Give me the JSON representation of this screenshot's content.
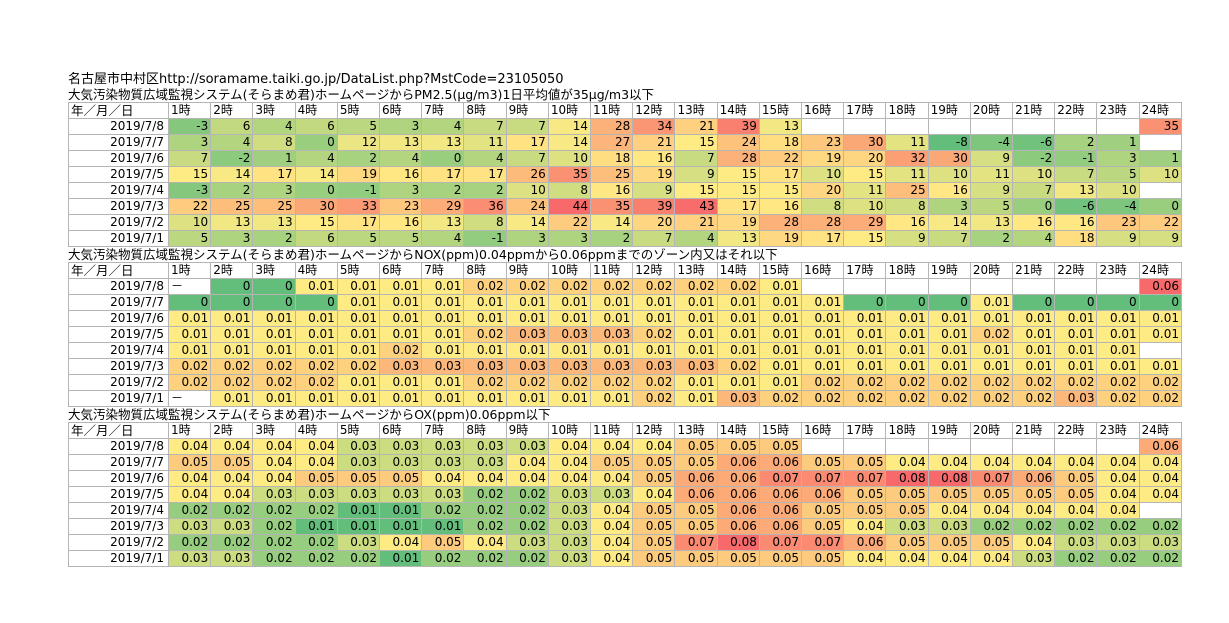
{
  "url_line": "名古屋市中村区http://soramame.taiki.go.jp/DataList.php?MstCode=23105050",
  "colors": {
    "green": "#63be7b",
    "yellow": "#ffeb84",
    "red": "#f8696b"
  },
  "sections": [
    {
      "title": "大気汚染物質広域監視システム(そらまめ君)ホームページからPM2.5(μg/m3)1日平均値が35μg/m3以下",
      "header_first": "年／月／日",
      "hours": [
        "1時",
        "2時",
        "3時",
        "4時",
        "5時",
        "6時",
        "7時",
        "8時",
        "9時",
        "10時",
        "11時",
        "12時",
        "13時",
        "14時",
        "15時",
        "16時",
        "17時",
        "18時",
        "19時",
        "20時",
        "21時",
        "22時",
        "23時",
        "24時"
      ],
      "scale": {
        "min": -8,
        "mid": 15,
        "max": 44,
        "decimals": 0
      },
      "rows": [
        {
          "date": "2019/7/8",
          "values": [
            -3,
            6,
            4,
            6,
            5,
            3,
            4,
            7,
            7,
            14,
            28,
            34,
            21,
            39,
            13,
            null,
            null,
            null,
            null,
            null,
            null,
            null,
            null,
            35
          ]
        },
        {
          "date": "2019/7/7",
          "values": [
            3,
            4,
            8,
            0,
            12,
            13,
            13,
            11,
            17,
            14,
            27,
            21,
            15,
            24,
            18,
            23,
            30,
            11,
            -8,
            -4,
            -6,
            2,
            1,
            null
          ]
        },
        {
          "date": "2019/7/6",
          "values": [
            7,
            -2,
            1,
            4,
            2,
            4,
            0,
            4,
            7,
            10,
            18,
            16,
            7,
            28,
            22,
            19,
            20,
            32,
            30,
            9,
            -2,
            -1,
            3,
            1
          ]
        },
        {
          "date": "2019/7/5",
          "values": [
            15,
            14,
            17,
            14,
            19,
            16,
            17,
            17,
            26,
            35,
            25,
            19,
            9,
            15,
            17,
            10,
            15,
            11,
            10,
            11,
            10,
            7,
            5,
            10
          ]
        },
        {
          "date": "2019/7/4",
          "values": [
            -3,
            2,
            3,
            0,
            -1,
            3,
            2,
            2,
            10,
            8,
            16,
            9,
            15,
            15,
            15,
            20,
            11,
            25,
            16,
            9,
            7,
            13,
            10,
            null
          ]
        },
        {
          "date": "2019/7/3",
          "values": [
            22,
            25,
            25,
            30,
            33,
            23,
            29,
            36,
            24,
            44,
            35,
            39,
            43,
            17,
            16,
            8,
            10,
            8,
            3,
            5,
            0,
            -6,
            -4,
            0
          ]
        },
        {
          "date": "2019/7/2",
          "values": [
            10,
            13,
            13,
            15,
            17,
            16,
            13,
            8,
            14,
            22,
            14,
            20,
            21,
            19,
            28,
            28,
            29,
            16,
            14,
            13,
            16,
            16,
            23,
            22
          ]
        },
        {
          "date": "2019/7/1",
          "values": [
            5,
            3,
            2,
            6,
            5,
            5,
            4,
            -1,
            3,
            3,
            2,
            7,
            4,
            13,
            19,
            17,
            15,
            9,
            7,
            2,
            4,
            18,
            9,
            9
          ]
        }
      ]
    },
    {
      "title": "大気汚染物質広域監視システム(そらまめ君)ホームページからNOX(ppm)0.04ppmから0.06ppmまでのゾーン内又はそれ以下",
      "header_first": "年／月／日",
      "hours": [
        "1時",
        "2時",
        "3時",
        "4時",
        "5時",
        "6時",
        "7時",
        "8時",
        "9時",
        "10時",
        "11時",
        "12時",
        "13時",
        "14時",
        "15時",
        "16時",
        "17時",
        "18時",
        "19時",
        "20時",
        "21時",
        "22時",
        "23時",
        "24時"
      ],
      "scale": {
        "min": 0,
        "mid": 0.01,
        "max": 0.06,
        "decimals": 2
      },
      "rows": [
        {
          "date": "2019/7/8",
          "values": [
            "－",
            0,
            0,
            0.01,
            0.01,
            0.01,
            0.01,
            0.02,
            0.02,
            0.02,
            0.02,
            0.02,
            0.02,
            0.02,
            0.01,
            null,
            null,
            null,
            null,
            null,
            null,
            null,
            null,
            0.06
          ]
        },
        {
          "date": "2019/7/7",
          "values": [
            0,
            0,
            0,
            0,
            0.01,
            0.01,
            0.01,
            0.01,
            0.01,
            0.01,
            0.01,
            0.01,
            0.01,
            0.01,
            0.01,
            0.01,
            0,
            0,
            0,
            0.01,
            0,
            0,
            0,
            0
          ]
        },
        {
          "date": "2019/7/6",
          "values": [
            0.01,
            0.01,
            0.01,
            0.01,
            0.01,
            0.01,
            0.01,
            0.01,
            0.01,
            0.01,
            0.01,
            0.01,
            0.01,
            0.01,
            0.01,
            0.01,
            0.01,
            0.01,
            0.01,
            0.01,
            0.01,
            0.01,
            0.01,
            0.01
          ]
        },
        {
          "date": "2019/7/5",
          "values": [
            0.01,
            0.01,
            0.01,
            0.01,
            0.01,
            0.01,
            0.01,
            0.02,
            0.03,
            0.03,
            0.03,
            0.02,
            0.01,
            0.01,
            0.01,
            0.01,
            0.01,
            0.01,
            0.01,
            0.02,
            0.01,
            0.01,
            0.01,
            0.01
          ]
        },
        {
          "date": "2019/7/4",
          "values": [
            0.01,
            0.01,
            0.01,
            0.01,
            0.01,
            0.02,
            0.01,
            0.01,
            0.01,
            0.01,
            0.01,
            0.01,
            0.01,
            0.01,
            0.01,
            0.01,
            0.01,
            0.01,
            0.01,
            0.01,
            0.01,
            0.01,
            0.01,
            null
          ]
        },
        {
          "date": "2019/7/3",
          "values": [
            0.02,
            0.02,
            0.02,
            0.02,
            0.02,
            0.03,
            0.03,
            0.03,
            0.03,
            0.03,
            0.03,
            0.03,
            0.03,
            0.02,
            0.01,
            0.01,
            0.01,
            0.01,
            0.01,
            0.01,
            0.01,
            0.01,
            0.01,
            0.01
          ]
        },
        {
          "date": "2019/7/2",
          "values": [
            0.02,
            0.02,
            0.02,
            0.02,
            0.01,
            0.01,
            0.01,
            0.02,
            0.02,
            0.02,
            0.02,
            0.02,
            0.01,
            0.01,
            0.01,
            0.02,
            0.02,
            0.02,
            0.02,
            0.02,
            0.02,
            0.02,
            0.02,
            0.02
          ]
        },
        {
          "date": "2019/7/1",
          "values": [
            "－",
            0.01,
            0.01,
            0.01,
            0.01,
            0.01,
            0.01,
            0.01,
            0.01,
            0.01,
            0.01,
            0.02,
            0.01,
            0.03,
            0.02,
            0.02,
            0.02,
            0.02,
            0.02,
            0.02,
            0.02,
            0.03,
            0.02,
            0.02
          ]
        }
      ]
    },
    {
      "title": "大気汚染物質広域監視システム(そらまめ君)ホームページからOX(ppm)0.06ppm以下",
      "header_first": "年／月／日",
      "hours": [
        "1時",
        "2時",
        "3時",
        "4時",
        "5時",
        "6時",
        "7時",
        "8時",
        "9時",
        "10時",
        "11時",
        "12時",
        "13時",
        "14時",
        "15時",
        "16時",
        "17時",
        "18時",
        "19時",
        "20時",
        "21時",
        "22時",
        "23時",
        "24時"
      ],
      "scale": {
        "min": 0.01,
        "mid": 0.04,
        "max": 0.08,
        "decimals": 2
      },
      "rows": [
        {
          "date": "2019/7/8",
          "values": [
            0.04,
            0.04,
            0.04,
            0.04,
            0.03,
            0.03,
            0.03,
            0.03,
            0.03,
            0.04,
            0.04,
            0.04,
            0.05,
            0.05,
            0.05,
            null,
            null,
            null,
            null,
            null,
            null,
            null,
            null,
            0.06
          ]
        },
        {
          "date": "2019/7/7",
          "values": [
            0.05,
            0.05,
            0.04,
            0.04,
            0.03,
            0.03,
            0.03,
            0.03,
            0.04,
            0.04,
            0.05,
            0.05,
            0.05,
            0.06,
            0.06,
            0.05,
            0.05,
            0.04,
            0.04,
            0.04,
            0.04,
            0.04,
            0.04,
            0.04
          ]
        },
        {
          "date": "2019/7/6",
          "values": [
            0.04,
            0.04,
            0.04,
            0.05,
            0.05,
            0.05,
            0.04,
            0.04,
            0.04,
            0.04,
            0.04,
            0.05,
            0.06,
            0.06,
            0.07,
            0.07,
            0.07,
            0.08,
            0.08,
            0.07,
            0.06,
            0.05,
            0.04,
            0.04
          ]
        },
        {
          "date": "2019/7/5",
          "values": [
            0.04,
            0.04,
            0.03,
            0.03,
            0.03,
            0.03,
            0.03,
            0.02,
            0.02,
            0.03,
            0.03,
            0.04,
            0.06,
            0.06,
            0.06,
            0.06,
            0.05,
            0.05,
            0.05,
            0.05,
            0.05,
            0.05,
            0.04,
            0.04
          ]
        },
        {
          "date": "2019/7/4",
          "values": [
            0.02,
            0.02,
            0.02,
            0.02,
            0.01,
            0.01,
            0.02,
            0.02,
            0.02,
            0.03,
            0.04,
            0.05,
            0.05,
            0.06,
            0.06,
            0.05,
            0.05,
            0.05,
            0.04,
            0.04,
            0.04,
            0.04,
            0.04,
            null
          ]
        },
        {
          "date": "2019/7/3",
          "values": [
            0.03,
            0.03,
            0.02,
            0.01,
            0.01,
            0.01,
            0.01,
            0.02,
            0.02,
            0.03,
            0.04,
            0.05,
            0.05,
            0.06,
            0.06,
            0.05,
            0.04,
            0.03,
            0.03,
            0.02,
            0.02,
            0.02,
            0.02,
            0.02
          ]
        },
        {
          "date": "2019/7/2",
          "values": [
            0.02,
            0.02,
            0.02,
            0.02,
            0.03,
            0.04,
            0.05,
            0.04,
            0.03,
            0.03,
            0.04,
            0.05,
            0.07,
            0.08,
            0.07,
            0.07,
            0.06,
            0.05,
            0.05,
            0.05,
            0.04,
            0.03,
            0.03,
            0.03
          ]
        },
        {
          "date": "2019/7/1",
          "values": [
            0.03,
            0.03,
            0.02,
            0.02,
            0.02,
            0.01,
            0.02,
            0.02,
            0.02,
            0.03,
            0.04,
            0.05,
            0.05,
            0.05,
            0.05,
            0.05,
            0.04,
            0.04,
            0.04,
            0.04,
            0.03,
            0.02,
            0.02,
            0.02
          ]
        }
      ]
    }
  ]
}
